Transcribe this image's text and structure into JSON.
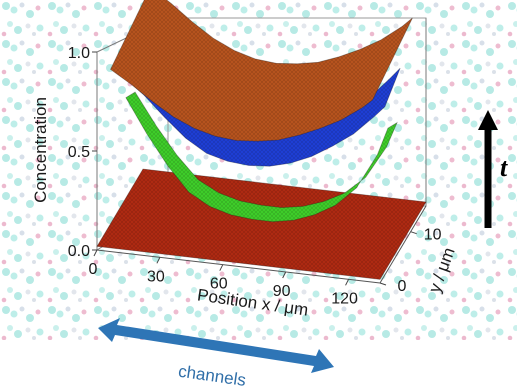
{
  "chart_data": {
    "type": "surface3d",
    "title": "",
    "zlabel": "Concentration",
    "xlabel": "Position x / μm",
    "ylabel": "y / μm",
    "z_ticks": [
      "0.0",
      "0.5",
      "1.0"
    ],
    "x_ticks": [
      "0",
      "30",
      "60",
      "90",
      "120"
    ],
    "y_ticks": [
      "0",
      "10"
    ],
    "xlim": [
      0,
      135
    ],
    "ylim": [
      0,
      15
    ],
    "zlim": [
      0,
      1.0
    ],
    "series": [
      {
        "color": "#b8541e",
        "x": [
          5,
          15,
          25,
          35,
          45,
          55,
          65,
          75,
          85,
          95,
          105,
          115,
          125,
          130
        ],
        "z": [
          0.97,
          0.9,
          0.82,
          0.75,
          0.7,
          0.67,
          0.66,
          0.67,
          0.69,
          0.73,
          0.78,
          0.84,
          0.92,
          0.97
        ]
      },
      {
        "color": "#1f3fd6",
        "x": [
          5,
          15,
          25,
          35,
          45,
          55,
          65,
          75,
          85,
          95,
          105,
          115,
          125,
          130
        ],
        "z": [
          0.82,
          0.73,
          0.62,
          0.52,
          0.45,
          0.42,
          0.41,
          0.42,
          0.45,
          0.5,
          0.57,
          0.65,
          0.76,
          0.82
        ]
      },
      {
        "color": "#3fcf2a",
        "x": [
          5,
          15,
          25,
          35,
          45,
          55,
          65,
          75,
          85,
          95,
          105,
          115,
          125,
          130
        ],
        "z": [
          0.62,
          0.45,
          0.3,
          0.18,
          0.12,
          0.09,
          0.08,
          0.08,
          0.1,
          0.14,
          0.2,
          0.3,
          0.48,
          0.62
        ]
      },
      {
        "color": "#b02a12",
        "x": [
          0,
          135
        ],
        "z": [
          0.02,
          0.02
        ]
      }
    ]
  },
  "time_arrow": {
    "label": "t",
    "direction": "up"
  },
  "channels_arrow": {
    "label": "channels",
    "color": "#2e75b6"
  }
}
